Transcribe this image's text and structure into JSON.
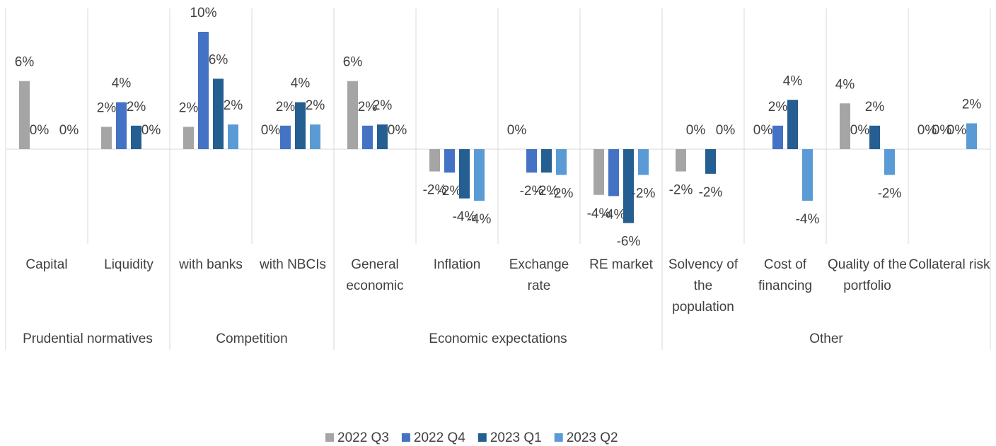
{
  "chart_data": {
    "type": "bar",
    "groups": [
      {
        "name": "Prudential normatives",
        "categories": [
          "Capital",
          "Liquidity"
        ]
      },
      {
        "name": "Competition",
        "categories": [
          "with banks",
          "with NBCIs"
        ]
      },
      {
        "name": "Economic expectations",
        "categories": [
          "General economic",
          "Inflation",
          "Exchange rate",
          "RE market"
        ]
      },
      {
        "name": "Other",
        "categories": [
          "Solvency of the population",
          "Cost of financing",
          "Quality of the portfolio",
          "Collateral risk"
        ]
      }
    ],
    "series": [
      {
        "name": "2022 Q3",
        "color": "#a5a5a5",
        "values": [
          5.8,
          1.9,
          1.9,
          0,
          5.8,
          -1.9,
          0,
          -3.9,
          -1.9,
          0,
          3.9,
          0
        ],
        "value_labels": [
          "6%",
          "2%",
          "2%",
          "0%",
          "6%",
          "-2%",
          "0%",
          "-4%",
          "-2%",
          "0%",
          "4%",
          "0%"
        ]
      },
      {
        "name": "2022 Q4",
        "color": "#4472c4",
        "values": [
          0,
          4.0,
          10.0,
          2.0,
          2.0,
          -2.0,
          -2.0,
          -4.0,
          0,
          2.0,
          0,
          0
        ],
        "value_labels": [
          "0%",
          "4%",
          "10%",
          "2%",
          "2%",
          "-2%",
          "-2%",
          "-4%",
          "0%",
          "2%",
          "0%",
          "0%"
        ]
      },
      {
        "name": "2023 Q1",
        "color": "#255e91",
        "values": [
          null,
          2.0,
          6.0,
          4.0,
          2.1,
          -4.2,
          -2.0,
          -6.3,
          -2.1,
          4.2,
          2.0,
          0
        ],
        "value_labels": [
          null,
          "2%",
          "6%",
          "4%",
          "2%",
          "-4%",
          "-2%",
          "-6%",
          "-2%",
          "4%",
          "2%",
          "0%"
        ]
      },
      {
        "name": "2023 Q2",
        "color": "#5b9bd5",
        "values": [
          0,
          0,
          2.1,
          2.1,
          0,
          -4.4,
          -2.2,
          -2.2,
          0,
          -4.4,
          -2.2,
          2.2
        ],
        "value_labels": [
          "0%",
          "0%",
          "2%",
          "2%",
          "0%",
          "-4%",
          "-2%",
          "-2%",
          "0%",
          "-4%",
          "-2%",
          "2%"
        ]
      }
    ]
  }
}
